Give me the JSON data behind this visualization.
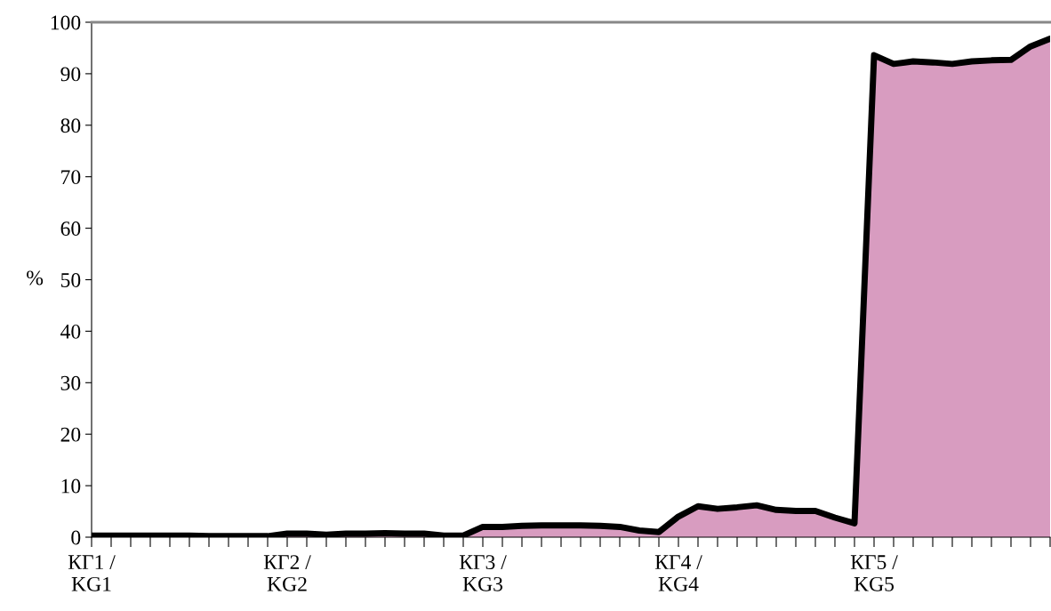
{
  "chart_data": {
    "type": "area",
    "ylabel": "%",
    "categories": [
      "КГ1 /\nKG1",
      null,
      null,
      null,
      null,
      null,
      null,
      null,
      null,
      null,
      "КГ2 /\nKG2",
      null,
      null,
      null,
      null,
      null,
      null,
      null,
      null,
      null,
      "КГ3 /\nKG3",
      null,
      null,
      null,
      null,
      null,
      null,
      null,
      null,
      null,
      "КГ4 /\nKG4",
      null,
      null,
      null,
      null,
      null,
      null,
      null,
      null,
      null,
      "КГ5 /\nKG5",
      null,
      null,
      null,
      null,
      null,
      null,
      null,
      null,
      null
    ],
    "series": [
      {
        "color": "#d89cc0",
        "values": [
          0.3,
          0.3,
          0.3,
          0.3,
          0.3,
          0.3,
          0.2,
          0.2,
          0.2,
          0.2,
          0.7,
          0.7,
          0.5,
          0.7,
          0.7,
          0.8,
          0.7,
          0.7,
          0.3,
          0.3,
          2.0,
          2.0,
          2.2,
          2.3,
          2.3,
          2.3,
          2.2,
          2.0,
          1.3,
          1.0,
          4.0,
          6.0,
          5.5,
          5.8,
          6.2,
          5.3,
          5.1,
          5.1,
          3.8,
          2.7,
          93.6,
          91.9,
          92.4,
          92.2,
          91.9,
          92.4,
          92.6,
          92.7,
          95.3,
          96.8
        ]
      }
    ],
    "ylim": [
      0,
      100
    ],
    "yticks": [
      0,
      10,
      20,
      30,
      40,
      50,
      60,
      70,
      80,
      90,
      100
    ],
    "grid": false,
    "legend": false
  }
}
